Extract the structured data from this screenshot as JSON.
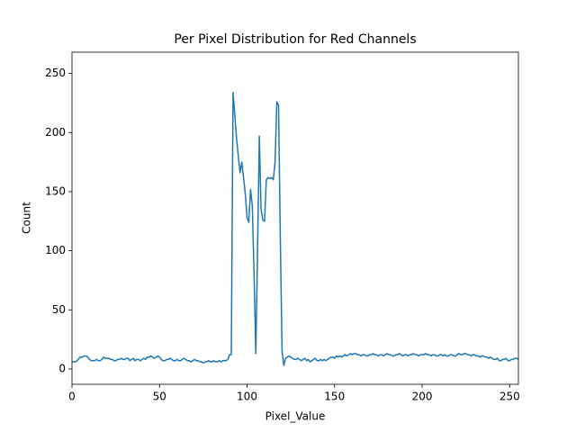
{
  "chart_data": {
    "type": "line",
    "title": "Per Pixel Distribution for Red Channels",
    "x_label": "Pixel_Value",
    "y_label": "Count",
    "color": "#1f77b4",
    "xlim": [
      0,
      255
    ],
    "ylim": [
      -13,
      268
    ],
    "xticks": [
      0,
      50,
      100,
      150,
      200,
      250
    ],
    "yticks": [
      0,
      50,
      100,
      150,
      200,
      250
    ],
    "x": [
      0,
      1,
      2,
      3,
      4,
      5,
      6,
      7,
      8,
      9,
      10,
      11,
      12,
      13,
      14,
      15,
      16,
      17,
      18,
      19,
      20,
      21,
      22,
      23,
      24,
      25,
      26,
      27,
      28,
      29,
      30,
      31,
      32,
      33,
      34,
      35,
      36,
      37,
      38,
      39,
      40,
      41,
      42,
      43,
      44,
      45,
      46,
      47,
      48,
      49,
      50,
      51,
      52,
      53,
      54,
      55,
      56,
      57,
      58,
      59,
      60,
      61,
      62,
      63,
      64,
      65,
      66,
      67,
      68,
      69,
      70,
      71,
      72,
      73,
      74,
      75,
      76,
      77,
      78,
      79,
      80,
      81,
      82,
      83,
      84,
      85,
      86,
      87,
      88,
      89,
      90,
      91,
      92,
      93,
      94,
      95,
      96,
      97,
      98,
      99,
      100,
      101,
      102,
      103,
      104,
      105,
      106,
      107,
      108,
      109,
      110,
      111,
      112,
      113,
      114,
      115,
      116,
      117,
      118,
      119,
      120,
      121,
      122,
      123,
      124,
      125,
      126,
      127,
      128,
      129,
      130,
      131,
      132,
      133,
      134,
      135,
      136,
      137,
      138,
      139,
      140,
      141,
      142,
      143,
      144,
      145,
      146,
      147,
      148,
      149,
      150,
      151,
      152,
      153,
      154,
      155,
      156,
      157,
      158,
      159,
      160,
      161,
      162,
      163,
      164,
      165,
      166,
      167,
      168,
      169,
      170,
      171,
      172,
      173,
      174,
      175,
      176,
      177,
      178,
      179,
      180,
      181,
      182,
      183,
      184,
      185,
      186,
      187,
      188,
      189,
      190,
      191,
      192,
      193,
      194,
      195,
      196,
      197,
      198,
      199,
      200,
      201,
      202,
      203,
      204,
      205,
      206,
      207,
      208,
      209,
      210,
      211,
      212,
      213,
      214,
      215,
      216,
      217,
      218,
      219,
      220,
      221,
      222,
      223,
      224,
      225,
      226,
      227,
      228,
      229,
      230,
      231,
      232,
      233,
      234,
      235,
      236,
      237,
      238,
      239,
      240,
      241,
      242,
      243,
      244,
      245,
      246,
      247,
      248,
      249,
      250,
      251,
      252,
      253,
      254,
      255
    ],
    "values": [
      6,
      6,
      6,
      7,
      9,
      10,
      10,
      11,
      11,
      10,
      8,
      7,
      7,
      7,
      8,
      7,
      7,
      8,
      10,
      9,
      9,
      9,
      8,
      8,
      7,
      7,
      8,
      8,
      9,
      8,
      8,
      9,
      9,
      7,
      8,
      9,
      7,
      8,
      8,
      7,
      8,
      9,
      8,
      10,
      10,
      11,
      10,
      9,
      10,
      11,
      10,
      8,
      7,
      7,
      8,
      8,
      9,
      8,
      7,
      7,
      8,
      7,
      7,
      8,
      9,
      8,
      7,
      7,
      6,
      7,
      8,
      7,
      7,
      6,
      6,
      5,
      6,
      6,
      7,
      6,
      6,
      7,
      6,
      6,
      7,
      6,
      7,
      7,
      7,
      8,
      12,
      12,
      234,
      215,
      195,
      180,
      166,
      175,
      162,
      148,
      128,
      124,
      152,
      138,
      80,
      13,
      100,
      197,
      135,
      126,
      125,
      160,
      162,
      161,
      162,
      160,
      175,
      226,
      223,
      110,
      15,
      3,
      9,
      10,
      11,
      10,
      9,
      8,
      8,
      9,
      8,
      7,
      8,
      9,
      7,
      8,
      6,
      7,
      8,
      9,
      7,
      7,
      8,
      7,
      8,
      7,
      8,
      9,
      10,
      10,
      9,
      11,
      10,
      11,
      10,
      11,
      12,
      11,
      12,
      13,
      12,
      13,
      13,
      12,
      12,
      11,
      12,
      12,
      11,
      11,
      12,
      12,
      13,
      12,
      12,
      11,
      12,
      12,
      11,
      12,
      13,
      12,
      12,
      11,
      11,
      12,
      12,
      13,
      12,
      11,
      12,
      12,
      11,
      12,
      12,
      13,
      12,
      12,
      11,
      12,
      12,
      12,
      13,
      12,
      12,
      11,
      12,
      12,
      11,
      11,
      12,
      12,
      11,
      12,
      11,
      11,
      12,
      12,
      11,
      11,
      12,
      13,
      12,
      12,
      13,
      13,
      12,
      12,
      11,
      12,
      12,
      11,
      11,
      10,
      11,
      11,
      10,
      10,
      9,
      10,
      9,
      8,
      8,
      9,
      7,
      7,
      8,
      8,
      9,
      7,
      7,
      8,
      8,
      9,
      9,
      8
    ]
  }
}
